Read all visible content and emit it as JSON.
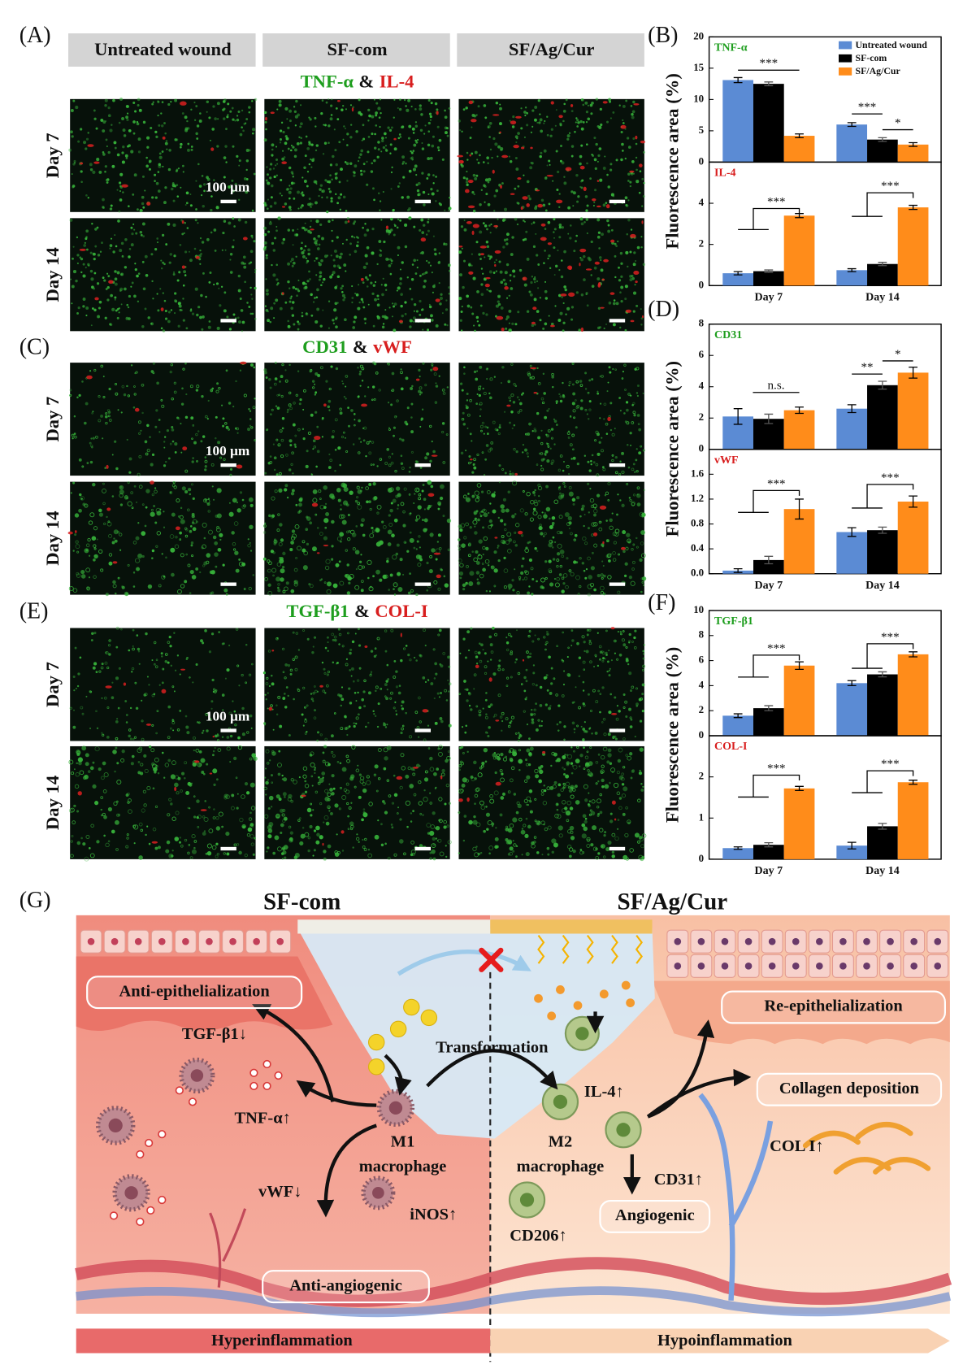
{
  "panel_labels": [
    "(A)",
    "(B)",
    "(C)",
    "(D)",
    "(E)",
    "(F)",
    "(G)"
  ],
  "columns": [
    "Untreated wound",
    "SF-com",
    "SF/Ag/Cur"
  ],
  "rows": [
    "Day 7",
    "Day 14"
  ],
  "scale_bar": "100 µm",
  "stains": [
    {
      "green": "TNF-α",
      "joiner": "&",
      "red": "IL-4"
    },
    {
      "green": "CD31",
      "joiner": "&",
      "red": "vWF"
    },
    {
      "green": "TGF-β1",
      "joiner": "&",
      "red": "COL-I"
    }
  ],
  "chart_data": [
    {
      "type": "bar",
      "title": "TNF-α",
      "title_color": "#1e9e1e",
      "ylabel": "Fluorescence area (%)",
      "categories": [
        null,
        null
      ],
      "series": [
        {
          "name": "Untreated wound",
          "color": "#5b8bd4",
          "values": [
            13.1,
            6.0
          ],
          "errors": [
            0.4,
            0.3
          ]
        },
        {
          "name": "SF-com",
          "color": "#000000",
          "values": [
            12.5,
            3.6
          ],
          "errors": [
            0.3,
            0.3
          ]
        },
        {
          "name": "SF/Ag/Cur",
          "color": "#ff8c1a",
          "values": [
            4.2,
            2.8
          ],
          "errors": [
            0.3,
            0.3
          ]
        }
      ],
      "ylim": [
        0,
        20
      ],
      "yticks": [
        0,
        5,
        10,
        15,
        20
      ],
      "annotations": [
        "***",
        "***",
        "*"
      ],
      "legend": "upper right"
    },
    {
      "type": "bar",
      "title": "IL-4",
      "title_color": "#d81e1e",
      "categories": [
        "Day 7",
        "Day 14"
      ],
      "series": [
        {
          "color": "#5b8bd4",
          "values": [
            0.6,
            0.75
          ],
          "errors": [
            0.08,
            0.07
          ]
        },
        {
          "color": "#000000",
          "values": [
            0.7,
            1.05
          ],
          "errors": [
            0.06,
            0.08
          ]
        },
        {
          "color": "#ff8c1a",
          "values": [
            3.4,
            3.8
          ],
          "errors": [
            0.1,
            0.1
          ]
        }
      ],
      "ylim": [
        0,
        6
      ],
      "yticks": [
        0,
        2,
        4
      ],
      "annotations": [
        "***",
        "***"
      ]
    },
    {
      "type": "bar",
      "title": "CD31",
      "title_color": "#1e9e1e",
      "ylabel": "Fluorescence area (%)",
      "categories": [
        null,
        null
      ],
      "series": [
        {
          "color": "#5b8bd4",
          "values": [
            2.1,
            2.6
          ],
          "errors": [
            0.5,
            0.25
          ]
        },
        {
          "color": "#000000",
          "values": [
            1.95,
            4.1
          ],
          "errors": [
            0.3,
            0.25
          ]
        },
        {
          "color": "#ff8c1a",
          "values": [
            2.5,
            4.9
          ],
          "errors": [
            0.2,
            0.35
          ]
        }
      ],
      "ylim": [
        0,
        8
      ],
      "yticks": [
        0,
        2,
        4,
        6,
        8
      ],
      "annotations": [
        "n.s.",
        "**",
        "*"
      ]
    },
    {
      "type": "bar",
      "title": "vWF",
      "title_color": "#d81e1e",
      "categories": [
        "Day 7",
        "Day 14"
      ],
      "series": [
        {
          "color": "#5b8bd4",
          "values": [
            0.05,
            0.67
          ],
          "errors": [
            0.03,
            0.07
          ]
        },
        {
          "color": "#000000",
          "values": [
            0.22,
            0.7
          ],
          "errors": [
            0.06,
            0.05
          ]
        },
        {
          "color": "#ff8c1a",
          "values": [
            1.04,
            1.16
          ],
          "errors": [
            0.16,
            0.09
          ]
        }
      ],
      "ylim": [
        0,
        2
      ],
      "yticks": [
        {
          "value": 0,
          "label": "0.0"
        },
        0.4,
        0.8,
        1.2,
        1.6
      ],
      "annotations": [
        "***",
        "***"
      ]
    },
    {
      "type": "bar",
      "title": "TGF-β1",
      "title_color": "#1e9e1e",
      "ylabel": "Fluorescence area (%)",
      "categories": [
        null,
        null
      ],
      "series": [
        {
          "color": "#5b8bd4",
          "values": [
            1.6,
            4.2
          ],
          "errors": [
            0.15,
            0.2
          ]
        },
        {
          "color": "#000000",
          "values": [
            2.2,
            4.9
          ],
          "errors": [
            0.2,
            0.2
          ]
        },
        {
          "color": "#ff8c1a",
          "values": [
            5.6,
            6.5
          ],
          "errors": [
            0.3,
            0.2
          ]
        }
      ],
      "ylim": [
        0,
        10
      ],
      "yticks": [
        0,
        2,
        4,
        6,
        8,
        10
      ],
      "annotations": [
        "***",
        "***"
      ]
    },
    {
      "type": "bar",
      "title": "COL-I",
      "title_color": "#d81e1e",
      "categories": [
        "Day 7",
        "Day 14"
      ],
      "series": [
        {
          "color": "#5b8bd4",
          "values": [
            0.27,
            0.33
          ],
          "errors": [
            0.03,
            0.08
          ]
        },
        {
          "color": "#000000",
          "values": [
            0.35,
            0.8
          ],
          "errors": [
            0.05,
            0.07
          ]
        },
        {
          "color": "#ff8c1a",
          "values": [
            1.72,
            1.87
          ],
          "errors": [
            0.05,
            0.05
          ]
        }
      ],
      "ylim": [
        0,
        3
      ],
      "yticks": [
        0,
        1,
        2
      ],
      "annotations": [
        "***",
        "***"
      ]
    }
  ],
  "diagram": {
    "left_title": "SF-com",
    "right_title": "SF/Ag/Cur",
    "labels": [
      "Anti-epithelialization",
      "TGF-β1↓",
      "TNF-α↑",
      "M1",
      "macrophage",
      "vWF↓",
      "iNOS↑",
      "Anti-angiogenic",
      "Transformation",
      "IL-4↑",
      "M2",
      "macrophage",
      "CD31↑",
      "Angiogenic",
      "CD206↑",
      "Re-epithelialization",
      "Collagen deposition",
      "COL I↑"
    ],
    "left_band": "Hyperinflammation",
    "right_band": "Hypoinflammation"
  }
}
